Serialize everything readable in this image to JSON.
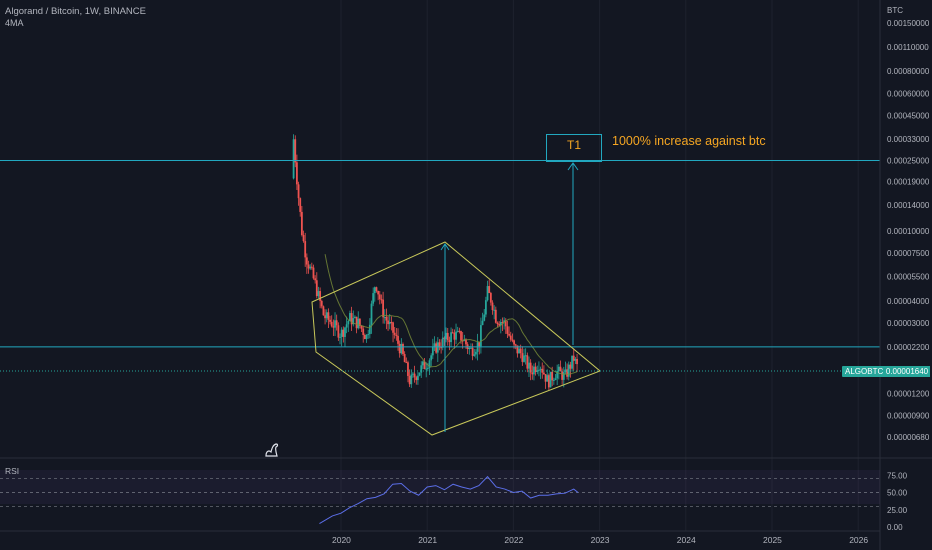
{
  "header": {
    "symbol": "Algorand / Bitcoin, 1W, BINANCE",
    "indicator": "4MA",
    "currency": "BTC",
    "rsi_label": "RSI"
  },
  "price_axis": {
    "ticks": [
      "0.00150000",
      "0.00110000",
      "0.00080000",
      "0.00060000",
      "0.00045000",
      "0.00033000",
      "0.00025000",
      "0.00019000",
      "0.00014000",
      "0.00010000",
      "0.00007500",
      "0.00005500",
      "0.00004000",
      "0.00003000",
      "0.00002200",
      "0.00001640",
      "0.00001200",
      "0.00000900",
      "0.00000680"
    ]
  },
  "rsi_axis": {
    "ticks": [
      "75.00",
      "50.00",
      "25.00",
      "0.00"
    ]
  },
  "time_axis": {
    "labels": [
      "2020",
      "2021",
      "2022",
      "2023",
      "2024",
      "2025",
      "2026"
    ]
  },
  "current_price": {
    "symbol": "ALGOBTC",
    "value": "0.00001640"
  },
  "annotations": {
    "target_label": "T1",
    "target_text": "1000% increase against btc"
  },
  "colors": {
    "background": "#131722",
    "candle_up": "#26a69a",
    "candle_down": "#ef5350",
    "horizontal_lines": "#22a8c0",
    "pattern": "#c8c85a",
    "ma": "#7a8f3a",
    "rsi": "#5b6ee8",
    "annotation": "#f5a623"
  },
  "chart_data": {
    "type": "candlestick",
    "log_scale": true,
    "price_series": {
      "t": [
        2019.45,
        2019.5,
        2019.55,
        2019.6,
        2019.7,
        2019.8,
        2019.9,
        2020.0,
        2020.1,
        2020.2,
        2020.3,
        2020.4,
        2020.5,
        2020.6,
        2020.7,
        2020.8,
        2020.9,
        2021.0,
        2021.1,
        2021.2,
        2021.3,
        2021.4,
        2021.5,
        2021.6,
        2021.7,
        2021.75,
        2021.8,
        2021.9,
        2022.0,
        2022.1,
        2022.2,
        2022.3,
        2022.4,
        2022.5,
        2022.6,
        2022.7,
        2022.75
      ],
      "close": [
        0.00033,
        0.00017,
        9.5e-05,
        7e-05,
        5e-05,
        3.3e-05,
        3e-05,
        2.6e-05,
        3.2e-05,
        3e-05,
        2.5e-05,
        5.2e-05,
        3.3e-05,
        2.7e-05,
        2.1e-05,
        1.4e-05,
        1.6e-05,
        1.8e-05,
        2.2e-05,
        2.4e-05,
        2.6e-05,
        2.5e-05,
        2.1e-05,
        2.3e-05,
        4.5e-05,
        4e-05,
        3.2e-05,
        3e-05,
        2.2e-05,
        2e-05,
        1.6e-05,
        1.8e-05,
        1.4e-05,
        1.6e-05,
        1.5e-05,
        1.9e-05,
        1.64e-05
      ]
    },
    "horizontal_levels": [
      0.00025,
      2.2e-05
    ],
    "rsi_series": {
      "t": [
        2019.75,
        2019.9,
        2020.0,
        2020.1,
        2020.2,
        2020.3,
        2020.4,
        2020.5,
        2020.6,
        2020.7,
        2020.8,
        2020.9,
        2021.0,
        2021.1,
        2021.2,
        2021.3,
        2021.4,
        2021.5,
        2021.6,
        2021.7,
        2021.8,
        2021.9,
        2022.0,
        2022.1,
        2022.2,
        2022.3,
        2022.4,
        2022.5,
        2022.6,
        2022.7,
        2022.75
      ],
      "values": [
        5,
        16,
        20,
        28,
        34,
        41,
        43,
        48,
        62,
        63,
        52,
        46,
        58,
        60,
        54,
        62,
        58,
        55,
        60,
        73,
        58,
        55,
        50,
        52,
        42,
        46,
        46,
        48,
        49,
        55,
        50
      ]
    },
    "rsi_bands": [
      70,
      50,
      30
    ]
  }
}
